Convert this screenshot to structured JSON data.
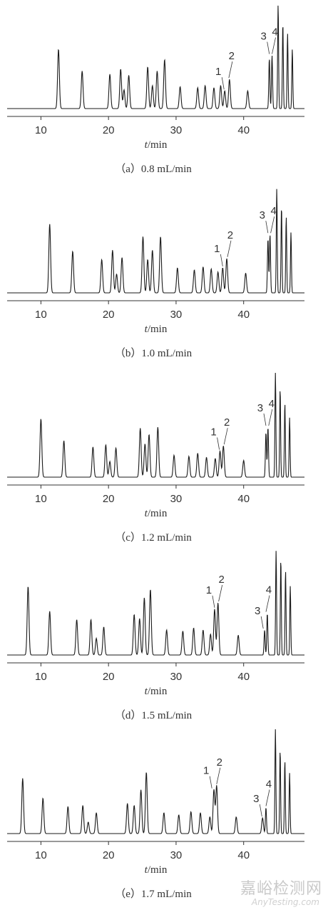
{
  "chart_data": [
    {
      "type": "line",
      "caption": "（a）0.8 mL/min",
      "xlabel_italic": "t",
      "xlabel_unit": "/min",
      "xlim": [
        5,
        49
      ],
      "xticks": [
        10,
        20,
        30,
        40
      ],
      "peak_labels": [
        {
          "text": "1",
          "x": 37.1
        },
        {
          "text": "2",
          "x": 37.8
        },
        {
          "text": "3",
          "x": 43.8
        },
        {
          "text": "4",
          "x": 44.2
        }
      ],
      "peaks": [
        {
          "x": 12.6,
          "h": 0.57
        },
        {
          "x": 16.1,
          "h": 0.36
        },
        {
          "x": 20.2,
          "h": 0.33
        },
        {
          "x": 21.8,
          "h": 0.38
        },
        {
          "x": 22.3,
          "h": 0.18
        },
        {
          "x": 23.0,
          "h": 0.32
        },
        {
          "x": 25.8,
          "h": 0.4
        },
        {
          "x": 26.5,
          "h": 0.22
        },
        {
          "x": 27.2,
          "h": 0.36
        },
        {
          "x": 28.3,
          "h": 0.47
        },
        {
          "x": 30.6,
          "h": 0.21
        },
        {
          "x": 33.2,
          "h": 0.2
        },
        {
          "x": 34.3,
          "h": 0.22
        },
        {
          "x": 35.6,
          "h": 0.2
        },
        {
          "x": 36.6,
          "h": 0.22
        },
        {
          "x": 37.2,
          "h": 0.17
        },
        {
          "x": 37.9,
          "h": 0.28
        },
        {
          "x": 40.6,
          "h": 0.17
        },
        {
          "x": 43.8,
          "h": 0.48
        },
        {
          "x": 44.2,
          "h": 0.51
        },
        {
          "x": 45.1,
          "h": 1.0
        },
        {
          "x": 45.8,
          "h": 0.82
        },
        {
          "x": 46.5,
          "h": 0.72
        },
        {
          "x": 47.2,
          "h": 0.57
        }
      ]
    },
    {
      "type": "line",
      "caption": "（b）1.0 mL/min",
      "xlabel_italic": "t",
      "xlabel_unit": "/min",
      "xlim": [
        5,
        49
      ],
      "xticks": [
        10,
        20,
        30,
        40
      ],
      "peak_labels": [
        {
          "text": "1",
          "x": 36.9
        },
        {
          "text": "2",
          "x": 37.6
        },
        {
          "text": "3",
          "x": 43.6
        },
        {
          "text": "4",
          "x": 44.0
        }
      ],
      "peaks": [
        {
          "x": 11.3,
          "h": 0.66
        },
        {
          "x": 14.7,
          "h": 0.4
        },
        {
          "x": 19.0,
          "h": 0.32
        },
        {
          "x": 20.6,
          "h": 0.41
        },
        {
          "x": 21.2,
          "h": 0.18
        },
        {
          "x": 22.0,
          "h": 0.34
        },
        {
          "x": 25.1,
          "h": 0.54
        },
        {
          "x": 25.8,
          "h": 0.32
        },
        {
          "x": 26.5,
          "h": 0.41
        },
        {
          "x": 27.7,
          "h": 0.54
        },
        {
          "x": 30.2,
          "h": 0.24
        },
        {
          "x": 32.7,
          "h": 0.22
        },
        {
          "x": 34.0,
          "h": 0.25
        },
        {
          "x": 35.2,
          "h": 0.23
        },
        {
          "x": 36.2,
          "h": 0.2
        },
        {
          "x": 36.9,
          "h": 0.24
        },
        {
          "x": 37.5,
          "h": 0.33
        },
        {
          "x": 40.3,
          "h": 0.19
        },
        {
          "x": 43.6,
          "h": 0.52
        },
        {
          "x": 43.9,
          "h": 0.56
        },
        {
          "x": 44.9,
          "h": 1.0
        },
        {
          "x": 45.6,
          "h": 0.83
        },
        {
          "x": 46.3,
          "h": 0.73
        },
        {
          "x": 47.0,
          "h": 0.58
        }
      ]
    },
    {
      "type": "line",
      "caption": "（c）1.2 mL/min",
      "xlabel_italic": "t",
      "xlabel_unit": "/min",
      "xlim": [
        5,
        49
      ],
      "xticks": [
        10,
        20,
        30,
        40
      ],
      "peak_labels": [
        {
          "text": "1",
          "x": 36.4
        },
        {
          "text": "2",
          "x": 37.1
        },
        {
          "text": "3",
          "x": 43.3
        },
        {
          "text": "4",
          "x": 43.7
        }
      ],
      "peaks": [
        {
          "x": 10.0,
          "h": 0.56
        },
        {
          "x": 13.4,
          "h": 0.35
        },
        {
          "x": 17.7,
          "h": 0.29
        },
        {
          "x": 19.6,
          "h": 0.31
        },
        {
          "x": 20.2,
          "h": 0.15
        },
        {
          "x": 21.1,
          "h": 0.28
        },
        {
          "x": 24.7,
          "h": 0.47
        },
        {
          "x": 25.4,
          "h": 0.32
        },
        {
          "x": 26.0,
          "h": 0.41
        },
        {
          "x": 27.3,
          "h": 0.48
        },
        {
          "x": 29.7,
          "h": 0.21
        },
        {
          "x": 31.9,
          "h": 0.2
        },
        {
          "x": 33.2,
          "h": 0.23
        },
        {
          "x": 34.5,
          "h": 0.19
        },
        {
          "x": 35.8,
          "h": 0.18
        },
        {
          "x": 36.5,
          "h": 0.25
        },
        {
          "x": 37.0,
          "h": 0.3
        },
        {
          "x": 40.0,
          "h": 0.16
        },
        {
          "x": 43.3,
          "h": 0.43
        },
        {
          "x": 43.6,
          "h": 0.48
        },
        {
          "x": 44.7,
          "h": 1.0
        },
        {
          "x": 45.4,
          "h": 0.85
        },
        {
          "x": 46.1,
          "h": 0.71
        },
        {
          "x": 46.8,
          "h": 0.57
        }
      ]
    },
    {
      "type": "line",
      "caption": "（d）1.5 mL/min",
      "xlabel_italic": "t",
      "xlabel_unit": "/min",
      "xlim": [
        5,
        49
      ],
      "xticks": [
        10,
        20,
        30,
        40
      ],
      "peak_labels": [
        {
          "text": "1",
          "x": 35.7
        },
        {
          "text": "2",
          "x": 36.3
        },
        {
          "text": "3",
          "x": 42.9
        },
        {
          "text": "4",
          "x": 43.3
        }
      ],
      "peaks": [
        {
          "x": 8.1,
          "h": 0.66
        },
        {
          "x": 11.3,
          "h": 0.42
        },
        {
          "x": 15.3,
          "h": 0.34
        },
        {
          "x": 17.4,
          "h": 0.34
        },
        {
          "x": 18.2,
          "h": 0.16
        },
        {
          "x": 19.3,
          "h": 0.27
        },
        {
          "x": 23.8,
          "h": 0.39
        },
        {
          "x": 24.6,
          "h": 0.35
        },
        {
          "x": 25.3,
          "h": 0.55
        },
        {
          "x": 26.2,
          "h": 0.63
        },
        {
          "x": 28.6,
          "h": 0.24
        },
        {
          "x": 31.0,
          "h": 0.23
        },
        {
          "x": 32.6,
          "h": 0.26
        },
        {
          "x": 34.0,
          "h": 0.24
        },
        {
          "x": 35.1,
          "h": 0.2
        },
        {
          "x": 35.7,
          "h": 0.44
        },
        {
          "x": 36.2,
          "h": 0.5
        },
        {
          "x": 39.2,
          "h": 0.19
        },
        {
          "x": 43.1,
          "h": 0.24
        },
        {
          "x": 43.5,
          "h": 0.4
        },
        {
          "x": 44.8,
          "h": 1.0
        },
        {
          "x": 45.5,
          "h": 0.92
        },
        {
          "x": 46.2,
          "h": 0.81
        },
        {
          "x": 46.9,
          "h": 0.66
        }
      ]
    },
    {
      "type": "line",
      "caption": "（e）1.7 mL/min",
      "xlabel_italic": "t",
      "xlabel_unit": "/min",
      "xlim": [
        5,
        49
      ],
      "xticks": [
        10,
        20,
        30,
        40
      ],
      "peak_labels": [
        {
          "text": "1",
          "x": 35.3
        },
        {
          "text": "2",
          "x": 36.0
        },
        {
          "text": "3",
          "x": 42.7
        },
        {
          "text": "4",
          "x": 43.3
        }
      ],
      "peaks": [
        {
          "x": 7.3,
          "h": 0.53
        },
        {
          "x": 10.3,
          "h": 0.34
        },
        {
          "x": 14.0,
          "h": 0.26
        },
        {
          "x": 16.2,
          "h": 0.27
        },
        {
          "x": 17.0,
          "h": 0.11
        },
        {
          "x": 18.2,
          "h": 0.2
        },
        {
          "x": 22.8,
          "h": 0.29
        },
        {
          "x": 23.8,
          "h": 0.27
        },
        {
          "x": 24.8,
          "h": 0.42
        },
        {
          "x": 25.6,
          "h": 0.59
        },
        {
          "x": 28.2,
          "h": 0.2
        },
        {
          "x": 30.4,
          "h": 0.18
        },
        {
          "x": 32.2,
          "h": 0.21
        },
        {
          "x": 33.6,
          "h": 0.2
        },
        {
          "x": 35.0,
          "h": 0.16
        },
        {
          "x": 35.6,
          "h": 0.42
        },
        {
          "x": 36.0,
          "h": 0.46
        },
        {
          "x": 38.9,
          "h": 0.16
        },
        {
          "x": 42.8,
          "h": 0.15
        },
        {
          "x": 43.3,
          "h": 0.25
        },
        {
          "x": 44.7,
          "h": 1.0
        },
        {
          "x": 45.4,
          "h": 0.8
        },
        {
          "x": 46.1,
          "h": 0.7
        },
        {
          "x": 46.8,
          "h": 0.58
        }
      ]
    }
  ],
  "watermark": {
    "text_cn": "嘉峪检测网",
    "text_en": "AnyTesting.com"
  },
  "colors": {
    "trace": "#1a1a1a",
    "axis": "#333333",
    "caption": "#333333",
    "watermark": "#c9c9c9"
  }
}
